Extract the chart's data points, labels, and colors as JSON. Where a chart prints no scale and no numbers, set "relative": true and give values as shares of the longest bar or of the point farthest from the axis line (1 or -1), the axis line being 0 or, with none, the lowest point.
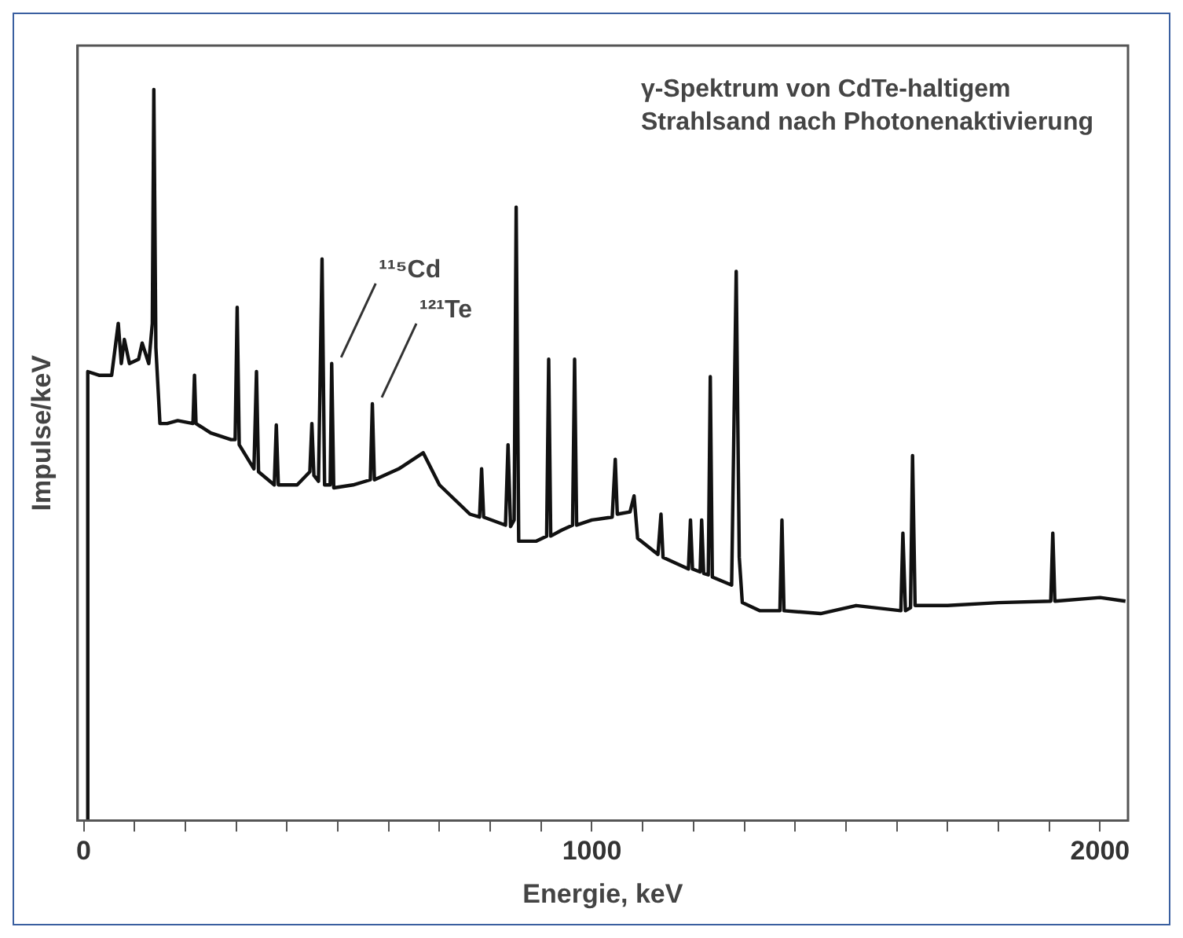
{
  "chart_data": {
    "type": "line",
    "title": "γ-Spektrum von CdTe-haltigem\nStrahlsand nach Photonenaktivierung",
    "xlabel": "Energie, keV",
    "ylabel": "Impulse/keV",
    "relative": true,
    "xlim": [
      -12,
      2055
    ],
    "xticks": [
      0,
      {
        "value": 100,
        "label": null
      },
      {
        "value": 200,
        "label": null
      },
      {
        "value": 300,
        "label": null
      },
      {
        "value": 400,
        "label": null
      },
      {
        "value": 500,
        "label": null
      },
      {
        "value": 600,
        "label": null
      },
      {
        "value": 700,
        "label": null
      },
      {
        "value": 800,
        "label": null
      },
      {
        "value": 900,
        "label": null
      },
      1000,
      {
        "value": 1100,
        "label": null
      },
      {
        "value": 1200,
        "label": null
      },
      {
        "value": 1300,
        "label": null
      },
      {
        "value": 1400,
        "label": null
      },
      {
        "value": 1500,
        "label": null
      },
      {
        "value": 1600,
        "label": null
      },
      {
        "value": 1700,
        "label": null
      },
      {
        "value": 1800,
        "label": null
      },
      {
        "value": 1900,
        "label": null
      },
      2000
    ],
    "grid": false,
    "legend": false,
    "marker": "none",
    "line_style": "solid",
    "annotations": [
      {
        "text": "¹¹⁵Cd",
        "x": 488,
        "y": 0.625
      },
      {
        "text": "¹²¹Te",
        "x": 568,
        "y": 0.57
      }
    ],
    "series": [
      {
        "color": "#111111",
        "x": [
          6,
          8,
          30,
          55,
          68,
          74,
          80,
          90,
          108,
          115,
          128,
          135,
          138,
          142,
          150,
          164,
          185,
          215,
          218,
          221,
          250,
          290,
          298,
          302,
          306,
          335,
          340,
          344,
          375,
          379,
          383,
          420,
          445,
          449,
          453,
          462,
          469,
          474,
          485,
          488,
          492,
          530,
          564,
          568,
          572,
          620,
          668,
          700,
          760,
          779,
          783,
          787,
          830,
          835,
          840,
          847,
          851,
          856,
          890,
          911,
          915,
          919,
          940,
          962,
          966,
          970,
          1000,
          1040,
          1046,
          1050,
          1075,
          1083,
          1090,
          1130,
          1136,
          1140,
          1190,
          1194,
          1198,
          1213,
          1216,
          1220,
          1229,
          1233,
          1237,
          1275,
          1284,
          1290,
          1296,
          1330,
          1370,
          1374,
          1378,
          1450,
          1520,
          1608,
          1612,
          1617,
          1627,
          1631,
          1636,
          1700,
          1800,
          1903,
          1907,
          1911,
          2000,
          2050
        ],
        "values": [
          0,
          0.614,
          0.609,
          0.609,
          0.68,
          0.625,
          0.658,
          0.625,
          0.631,
          0.653,
          0.625,
          0.68,
          1,
          0.647,
          0.543,
          0.543,
          0.547,
          0.543,
          0.609,
          0.543,
          0.53,
          0.521,
          0.521,
          0.702,
          0.514,
          0.481,
          0.614,
          0.477,
          0.459,
          0.541,
          0.459,
          0.459,
          0.477,
          0.543,
          0.472,
          0.464,
          0.768,
          0.459,
          0.459,
          0.625,
          0.455,
          0.459,
          0.466,
          0.57,
          0.466,
          0.481,
          0.503,
          0.459,
          0.419,
          0.415,
          0.481,
          0.415,
          0.404,
          0.514,
          0.402,
          0.411,
          0.839,
          0.382,
          0.382,
          0.389,
          0.631,
          0.389,
          0.397,
          0.404,
          0.631,
          0.404,
          0.411,
          0.415,
          0.494,
          0.419,
          0.422,
          0.444,
          0.386,
          0.364,
          0.419,
          0.36,
          0.344,
          0.411,
          0.344,
          0.34,
          0.411,
          0.338,
          0.336,
          0.607,
          0.333,
          0.322,
          0.751,
          0.36,
          0.298,
          0.287,
          0.287,
          0.411,
          0.287,
          0.283,
          0.294,
          0.287,
          0.393,
          0.287,
          0.291,
          0.499,
          0.294,
          0.294,
          0.298,
          0.3,
          0.393,
          0.3,
          0.305,
          0.3
        ]
      }
    ]
  }
}
